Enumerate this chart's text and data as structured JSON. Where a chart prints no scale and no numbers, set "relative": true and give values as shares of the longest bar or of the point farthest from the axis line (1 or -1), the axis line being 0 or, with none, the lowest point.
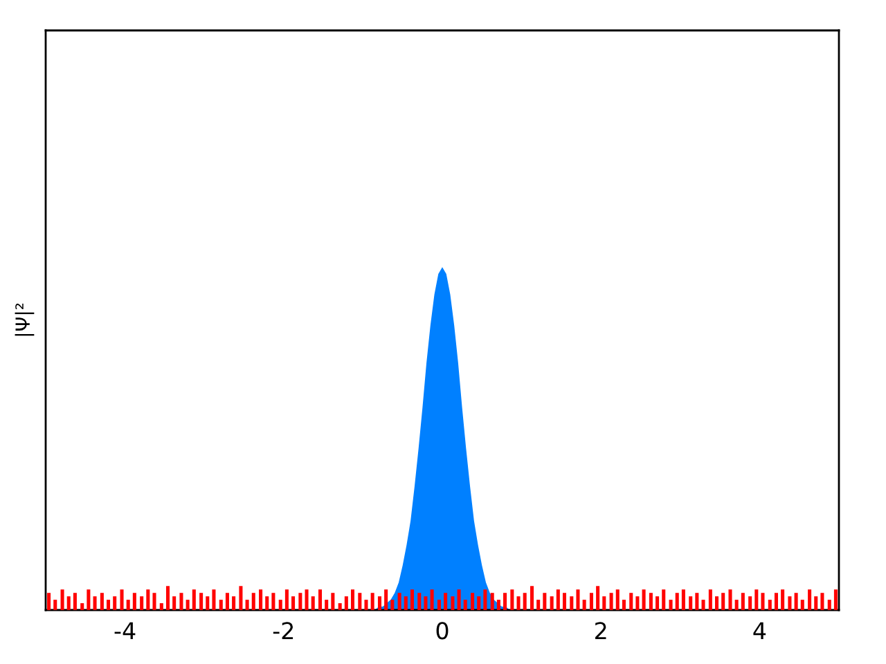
{
  "chart_data": {
    "type": "area",
    "relative": true,
    "ylabel": "|Ψ|²",
    "xlim": [
      -5,
      5
    ],
    "xticks": [
      -4,
      -2,
      0,
      2,
      4
    ],
    "series": [
      {
        "color": "#0080ff",
        "x": [
          -1.0,
          -0.95,
          -0.9,
          -0.85,
          -0.8,
          -0.75,
          -0.7,
          -0.65,
          -0.6,
          -0.55,
          -0.5,
          -0.45,
          -0.4,
          -0.35,
          -0.3,
          -0.25,
          -0.2,
          -0.15,
          -0.1,
          -0.05,
          0.0,
          0.05,
          0.1,
          0.15,
          0.2,
          0.25,
          0.3,
          0.35,
          0.4,
          0.45,
          0.5,
          0.55,
          0.6,
          0.65,
          0.7,
          0.75,
          0.8,
          0.85,
          0.9,
          0.95,
          1.0
        ],
        "values": [
          0,
          0,
          0,
          0,
          0.01,
          0.01,
          0.02,
          0.03,
          0.05,
          0.08,
          0.13,
          0.19,
          0.26,
          0.36,
          0.47,
          0.59,
          0.72,
          0.83,
          0.92,
          0.98,
          1.0,
          0.98,
          0.92,
          0.83,
          0.72,
          0.59,
          0.47,
          0.36,
          0.26,
          0.19,
          0.13,
          0.08,
          0.05,
          0.03,
          0.02,
          0.01,
          0.01,
          0,
          0,
          0,
          0
        ]
      },
      {
        "type": "bar",
        "color": "#ff0000",
        "x": [
          -4.96,
          -4.88,
          -4.79,
          -4.71,
          -4.63,
          -4.54,
          -4.46,
          -4.38,
          -4.29,
          -4.21,
          -4.13,
          -4.04,
          -3.96,
          -3.88,
          -3.79,
          -3.71,
          -3.63,
          -3.54,
          -3.46,
          -3.38,
          -3.29,
          -3.21,
          -3.13,
          -3.04,
          -2.96,
          -2.88,
          -2.79,
          -2.71,
          -2.63,
          -2.54,
          -2.46,
          -2.38,
          -2.29,
          -2.21,
          -2.13,
          -2.04,
          -1.96,
          -1.88,
          -1.79,
          -1.71,
          -1.63,
          -1.54,
          -1.46,
          -1.38,
          -1.29,
          -1.21,
          -1.13,
          -1.04,
          -0.96,
          -0.88,
          -0.79,
          -0.71,
          -0.63,
          -0.54,
          -0.46,
          -0.38,
          -0.29,
          -0.21,
          -0.13,
          -0.04,
          0.04,
          0.13,
          0.21,
          0.29,
          0.38,
          0.46,
          0.54,
          0.63,
          0.71,
          0.79,
          0.88,
          0.96,
          1.04,
          1.13,
          1.21,
          1.29,
          1.38,
          1.46,
          1.54,
          1.63,
          1.71,
          1.79,
          1.88,
          1.96,
          2.04,
          2.13,
          2.21,
          2.29,
          2.38,
          2.46,
          2.54,
          2.63,
          2.71,
          2.79,
          2.88,
          2.96,
          3.04,
          3.13,
          3.21,
          3.29,
          3.38,
          3.46,
          3.54,
          3.63,
          3.71,
          3.79,
          3.88,
          3.96,
          4.04,
          4.13,
          4.21,
          4.29,
          4.38,
          4.46,
          4.54,
          4.63,
          4.71,
          4.79,
          4.88,
          4.96
        ],
        "values": [
          0.05,
          0.03,
          0.06,
          0.04,
          0.05,
          0.02,
          0.06,
          0.04,
          0.05,
          0.03,
          0.04,
          0.06,
          0.03,
          0.05,
          0.04,
          0.06,
          0.05,
          0.02,
          0.07,
          0.04,
          0.05,
          0.03,
          0.06,
          0.05,
          0.04,
          0.06,
          0.03,
          0.05,
          0.04,
          0.07,
          0.03,
          0.05,
          0.06,
          0.04,
          0.05,
          0.03,
          0.06,
          0.04,
          0.05,
          0.06,
          0.04,
          0.06,
          0.03,
          0.05,
          0.02,
          0.04,
          0.06,
          0.05,
          0.03,
          0.05,
          0.04,
          0.06,
          0.03,
          0.05,
          0.04,
          0.06,
          0.05,
          0.04,
          0.06,
          0.03,
          0.05,
          0.04,
          0.06,
          0.03,
          0.05,
          0.04,
          0.06,
          0.05,
          0.03,
          0.05,
          0.06,
          0.04,
          0.05,
          0.07,
          0.03,
          0.05,
          0.04,
          0.06,
          0.05,
          0.04,
          0.06,
          0.03,
          0.05,
          0.07,
          0.04,
          0.05,
          0.06,
          0.03,
          0.05,
          0.04,
          0.06,
          0.05,
          0.04,
          0.06,
          0.03,
          0.05,
          0.06,
          0.04,
          0.05,
          0.03,
          0.06,
          0.04,
          0.05,
          0.06,
          0.03,
          0.05,
          0.04,
          0.06,
          0.05,
          0.03,
          0.05,
          0.06,
          0.04,
          0.05,
          0.03,
          0.06,
          0.04,
          0.05,
          0.03,
          0.06
        ]
      }
    ]
  }
}
